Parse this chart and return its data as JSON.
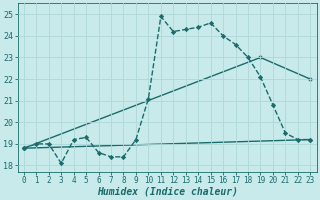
{
  "xlabel": "Humidex (Indice chaleur)",
  "background_color": "#c8eaea",
  "grid_color": "#b0d8d8",
  "line_color": "#1a6b6b",
  "xlim": [
    -0.5,
    23.5
  ],
  "ylim": [
    17.7,
    25.5
  ],
  "yticks": [
    18,
    19,
    20,
    21,
    22,
    23,
    24,
    25
  ],
  "xticks": [
    0,
    1,
    2,
    3,
    4,
    5,
    6,
    7,
    8,
    9,
    10,
    11,
    12,
    13,
    14,
    15,
    16,
    17,
    18,
    19,
    20,
    21,
    22,
    23
  ],
  "series1_x": [
    0,
    1,
    2,
    3,
    4,
    5,
    6,
    7,
    8,
    9,
    10,
    11,
    12,
    13,
    14,
    15,
    16,
    17,
    18,
    19,
    20,
    21,
    22,
    23
  ],
  "series1_y": [
    18.8,
    19.0,
    19.0,
    18.1,
    19.2,
    19.3,
    18.6,
    18.4,
    18.4,
    19.2,
    21.1,
    24.9,
    24.2,
    24.3,
    24.4,
    24.6,
    24.0,
    23.6,
    23.0,
    22.1,
    20.8,
    19.5,
    19.2,
    19.2
  ],
  "series2_x": [
    0,
    19,
    23
  ],
  "series2_y": [
    18.8,
    23.0,
    22.0
  ],
  "series3_x": [
    0,
    23
  ],
  "series3_y": [
    18.8,
    19.2
  ],
  "marker": "D",
  "marker_size": 2.2,
  "line_width": 1.0,
  "tick_fontsize": 5.5,
  "xlabel_fontsize": 7.0
}
